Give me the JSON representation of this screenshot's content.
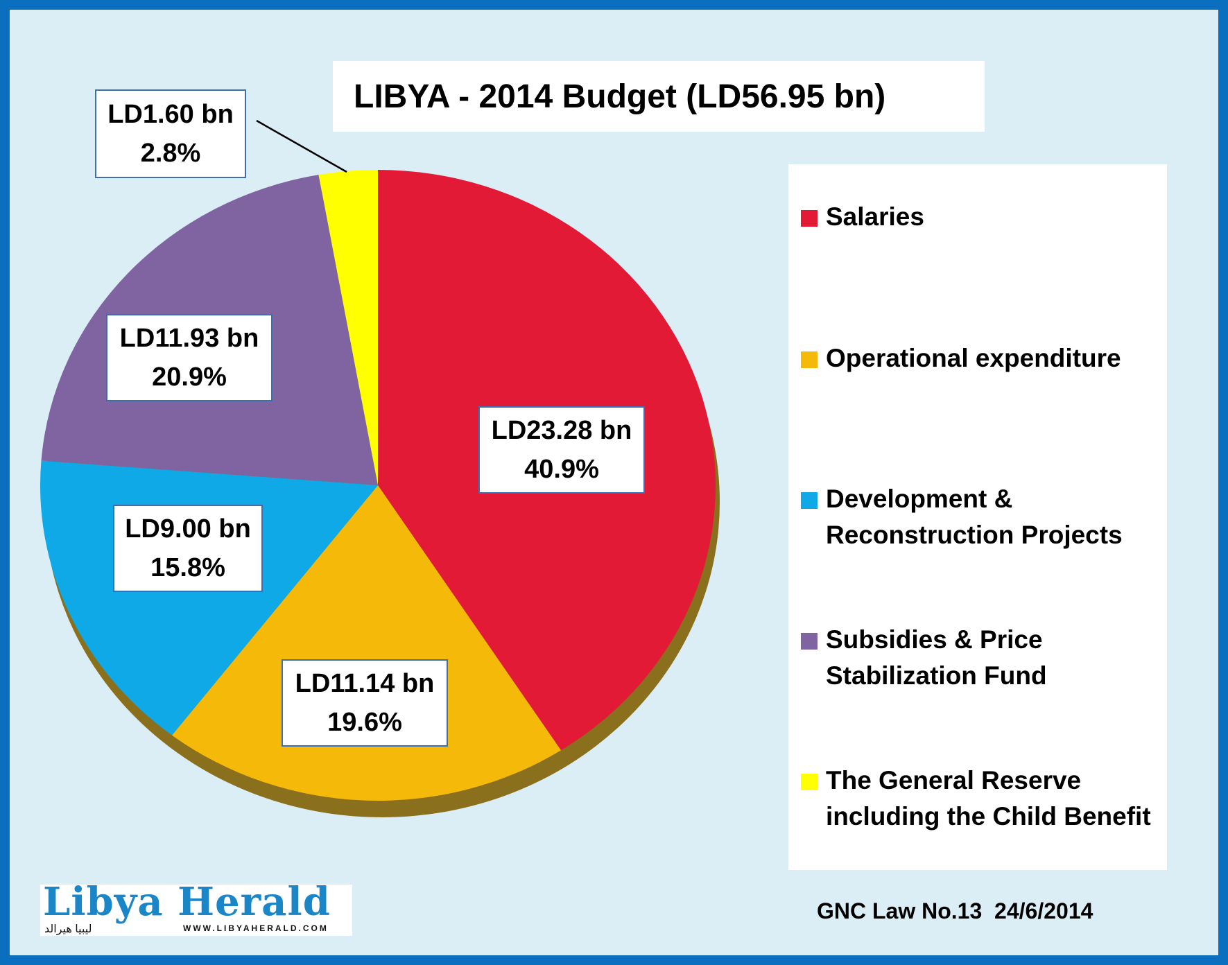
{
  "chart_data": {
    "type": "pie",
    "title": "LIBYA - 2014 Budget (LD56.95 bn)",
    "slices": [
      {
        "name": "Salaries",
        "value": 23.28,
        "value_label": "LD23.28 bn",
        "percent_label": "40.9%",
        "color": "#e31a35"
      },
      {
        "name": "Operational expenditure",
        "value": 11.14,
        "value_label": "LD11.14 bn",
        "percent_label": "19.6%",
        "color": "#f5b90a"
      },
      {
        "name": "Development & Reconstruction Projects",
        "value": 9.0,
        "value_label": "LD9.00 bn",
        "percent_label": "15.8%",
        "color": "#0ea9e6"
      },
      {
        "name": "Subsidies & Price Stabilization Fund",
        "value": 11.93,
        "value_label": "LD11.93 bn",
        "percent_label": "20.9%",
        "color": "#8064a2"
      },
      {
        "name": "The General Reserve including the Child Benefit",
        "value": 1.6,
        "value_label": "LD1.60 bn",
        "percent_label": "2.8%",
        "color": "#ffff00"
      }
    ],
    "legend_position": "right"
  },
  "legend": {
    "items": [
      {
        "lines": [
          "Salaries"
        ],
        "color": "#e31a35"
      },
      {
        "lines": [
          "Operational expenditure"
        ],
        "color": "#f5b90a"
      },
      {
        "lines": [
          "Development &",
          "Reconstruction Projects"
        ],
        "color": "#0ea9e6"
      },
      {
        "lines": [
          "Subsidies & Price",
          "Stabilization Fund"
        ],
        "color": "#8064a2"
      },
      {
        "lines": [
          "The General Reserve",
          "including the Child Benefit"
        ],
        "color": "#ffff00"
      }
    ]
  },
  "logo": {
    "name": "Libya Herald",
    "arabic": "ليبيا هيرالد",
    "url": "WWW.LIBYAHERALD.COM"
  },
  "source": "GNC Law No.13  24/6/2014",
  "colors": {
    "frame": "#0b6fc0",
    "background": "#dbeef6",
    "label_border": "#3d6fb0"
  }
}
